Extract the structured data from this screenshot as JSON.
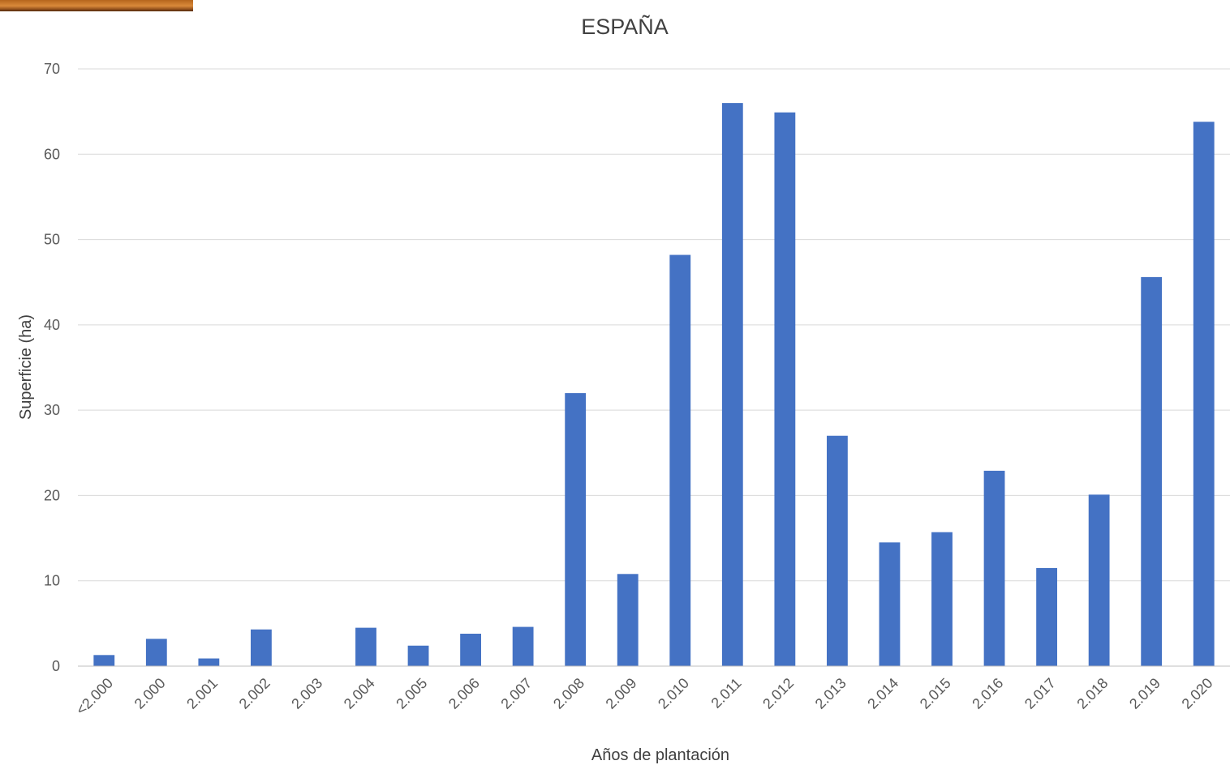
{
  "chart_data": {
    "type": "bar",
    "title": "ESPAÑA",
    "xlabel": "Años de plantación",
    "ylabel": "Superficie (ha)",
    "categories": [
      "<2.000",
      "2.000",
      "2.001",
      "2.002",
      "2.003",
      "2.004",
      "2.005",
      "2.006",
      "2.007",
      "2.008",
      "2.009",
      "2.010",
      "2.011",
      "2.012",
      "2.013",
      "2.014",
      "2.015",
      "2.016",
      "2.017",
      "2.018",
      "2.019",
      "2.020"
    ],
    "values": [
      1.3,
      3.2,
      0.9,
      4.3,
      0,
      4.5,
      2.4,
      3.8,
      4.6,
      32.0,
      10.8,
      48.2,
      66.0,
      64.9,
      27.0,
      14.5,
      15.7,
      22.9,
      11.5,
      20.1,
      45.6,
      63.8
    ],
    "ylim": [
      0,
      70
    ],
    "yticks": [
      0,
      10,
      20,
      30,
      40,
      50,
      60,
      70
    ],
    "grid": true,
    "legend": "none",
    "bar_color": "#4472c4"
  }
}
